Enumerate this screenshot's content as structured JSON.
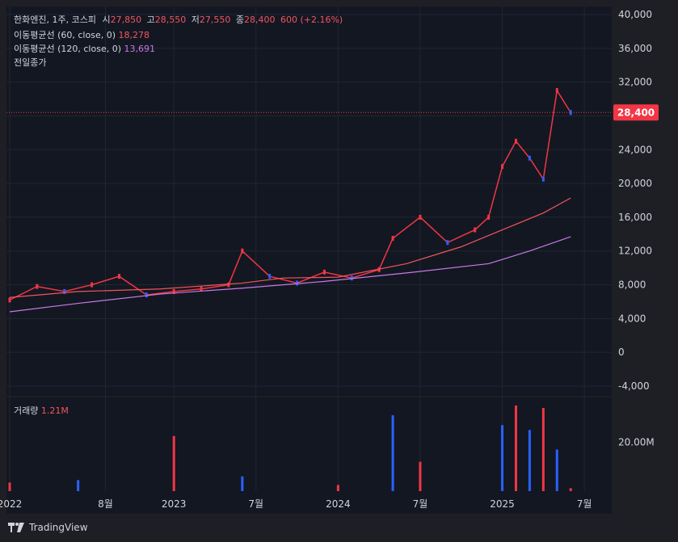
{
  "legend": {
    "symbol": "한화엔진, 1주, 코스피",
    "open_label": "시",
    "open": "27,850",
    "high_label": "고",
    "high": "28,550",
    "low_label": "저",
    "low": "27,550",
    "close_label": "종",
    "close": "28,400",
    "change": "600 (+2.16%)",
    "ma60_label": "이동평균선 (60, close, 0)",
    "ma60_value": "18,278",
    "ma120_label": "이동평균선 (120, close, 0)",
    "ma120_value": "13,691",
    "prev_close_label": "전일종가"
  },
  "volume_legend": {
    "label": "거래량",
    "value": "1.21M"
  },
  "price_tag": "28,400",
  "brand": "TradingView",
  "colors": {
    "up": "#f23645",
    "down": "#2962ff",
    "ma60": "#f0565e",
    "ma120": "#c77ae6",
    "bg": "#1e1f24",
    "pane": "#131722"
  },
  "chart_data": [
    {
      "type": "candlestick",
      "title": "한화엔진, 1주, 코스피",
      "y_ticks": [
        "40,000",
        "36,000",
        "32,000",
        "28,000",
        "24,000",
        "20,000",
        "16,000",
        "12,000",
        "8,000",
        "4,000",
        "0",
        "-4,000"
      ],
      "ylim": [
        -4000,
        40000
      ],
      "x_ticks": [
        "2022",
        "8월",
        "2023",
        "7월",
        "2024",
        "7월",
        "2025",
        "7월"
      ],
      "x_tick_values": [
        "2022-01",
        "2022-08",
        "2023-01",
        "2023-07",
        "2024-01",
        "2024-07",
        "2025-01",
        "2025-07"
      ],
      "xlim": [
        "2022-01",
        "2025-09"
      ],
      "series": [
        {
          "name": "가격",
          "kind": "close",
          "x": [
            "2022-01",
            "2022-03",
            "2022-05",
            "2022-07",
            "2022-09",
            "2022-11",
            "2023-01",
            "2023-03",
            "2023-05",
            "2023-06",
            "2023-08",
            "2023-10",
            "2023-12",
            "2024-02",
            "2024-04",
            "2024-05",
            "2024-07",
            "2024-09",
            "2024-11",
            "2024-12",
            "2025-01",
            "2025-02",
            "2025-03",
            "2025-04",
            "2025-05",
            "2025-06"
          ],
          "values": [
            6200,
            7800,
            7200,
            8000,
            9000,
            6800,
            7200,
            7500,
            8000,
            12000,
            9000,
            8200,
            9500,
            8800,
            9800,
            13500,
            16000,
            13000,
            14500,
            16000,
            22000,
            25000,
            23000,
            20500,
            31000,
            28400
          ]
        },
        {
          "name": "이동평균선 (60, close, 0)",
          "x": [
            "2022-01",
            "2022-06",
            "2022-12",
            "2023-06",
            "2023-09",
            "2024-01",
            "2024-06",
            "2024-10",
            "2025-01",
            "2025-04",
            "2025-06"
          ],
          "values": [
            6500,
            7200,
            7500,
            8200,
            8800,
            8900,
            10500,
            12500,
            14500,
            16500,
            18278
          ]
        },
        {
          "name": "이동평균선 (120, close, 0)",
          "x": [
            "2022-01",
            "2022-06",
            "2022-12",
            "2023-06",
            "2023-12",
            "2024-06",
            "2024-12",
            "2025-03",
            "2025-06"
          ],
          "values": [
            4800,
            5800,
            6900,
            7600,
            8400,
            9400,
            10500,
            12000,
            13691
          ]
        }
      ]
    },
    {
      "type": "bar",
      "title": "거래량",
      "y_ticks": [
        "20.00M"
      ],
      "x": [
        "2022-01",
        "2022-06",
        "2023-01",
        "2023-06",
        "2024-01",
        "2024-05",
        "2024-07",
        "2025-01",
        "2025-02",
        "2025-03",
        "2025-04",
        "2025-05",
        "2025-06"
      ],
      "values": [
        3500000,
        4500000,
        22500000,
        6000000,
        2500000,
        31000000,
        12000000,
        27000000,
        35000000,
        25000000,
        34000000,
        17000000,
        1210000
      ]
    }
  ]
}
